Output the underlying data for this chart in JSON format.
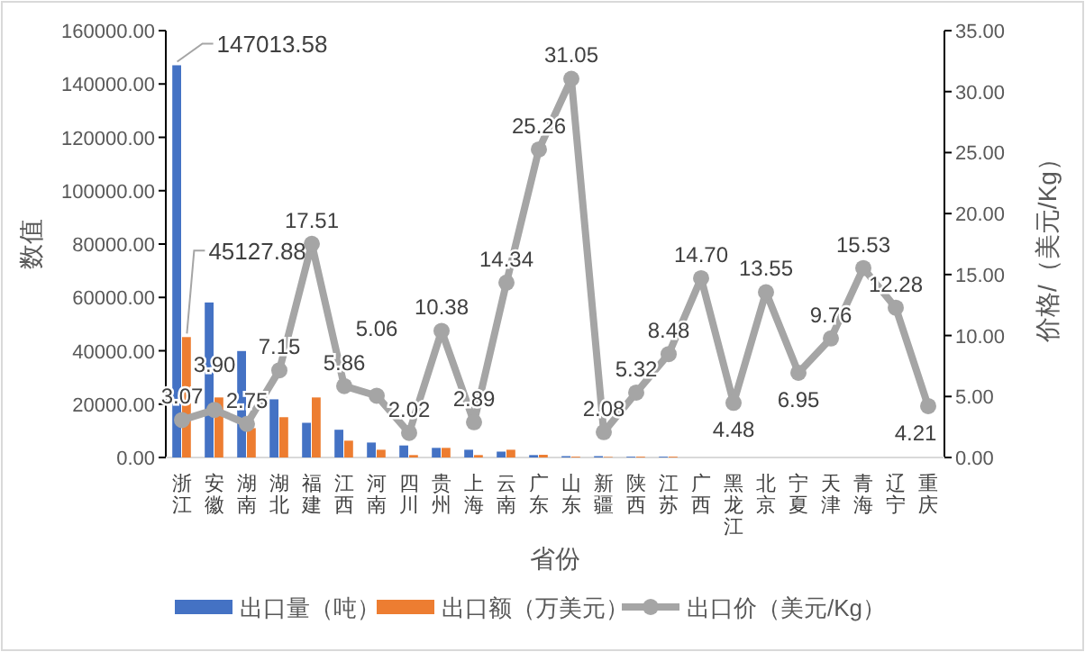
{
  "chart_data": {
    "type": "bar",
    "xlabel": "省份",
    "ylabel": "数值",
    "y2label": "价格/（美元/Kg）",
    "categories": [
      "浙江",
      "安徽",
      "湖南",
      "湖北",
      "福建",
      "江西",
      "河南",
      "四川",
      "贵州",
      "上海",
      "云南",
      "广东",
      "山东",
      "新疆",
      "陕西",
      "江苏",
      "广西",
      "黑龙江",
      "北京",
      "宁夏",
      "天津",
      "青海",
      "辽宁",
      "重庆"
    ],
    "series": [
      {
        "name": "出口量（吨）",
        "color": "#4472c4",
        "values": [
          147013.58,
          58100,
          39900,
          21800,
          13000,
          10400,
          5600,
          4500,
          3600,
          2900,
          2200,
          900,
          500,
          500,
          300,
          300,
          0,
          0,
          0,
          0,
          0,
          0,
          0,
          0
        ],
        "value_labels": [
          "147013.58",
          null,
          null,
          null,
          null,
          null,
          null,
          null,
          null,
          null,
          null,
          null,
          null,
          null,
          null,
          null,
          null,
          null,
          null,
          null,
          null,
          null,
          null,
          null
        ]
      },
      {
        "name": "出口额（万美元）",
        "color": "#ed7d31",
        "values": [
          45127.88,
          22500,
          11000,
          15100,
          22500,
          6300,
          2900,
          900,
          3600,
          900,
          2900,
          1000,
          300,
          200,
          300,
          300,
          0,
          0,
          0,
          0,
          0,
          0,
          0,
          0
        ],
        "value_labels": [
          "45127.88",
          null,
          null,
          null,
          null,
          null,
          null,
          null,
          null,
          null,
          null,
          null,
          null,
          null,
          null,
          null,
          null,
          null,
          null,
          null,
          null,
          null,
          null,
          null
        ]
      },
      {
        "name": "出口价（美元/Kg）",
        "type": "line",
        "axis": "y2",
        "color": "#a5a5a5",
        "marker": "circle",
        "values": [
          3.07,
          3.9,
          2.75,
          7.15,
          17.51,
          5.86,
          5.06,
          2.02,
          10.38,
          2.89,
          14.34,
          25.26,
          31.05,
          2.08,
          5.32,
          8.48,
          14.7,
          4.48,
          13.55,
          6.95,
          9.76,
          15.53,
          12.28,
          4.21
        ],
        "value_labels": [
          "3.07",
          "3.90",
          "2.75",
          "7.15",
          "17.51",
          "5.86",
          "5.06",
          "2.02",
          "10.38",
          "2.89",
          "14.34",
          "25.26",
          "31.05",
          "2.08",
          "5.32",
          "8.48",
          "14.70",
          "4.48",
          "13.55",
          "6.95",
          "9.76",
          "15.53",
          "12.28",
          "4.21"
        ]
      }
    ],
    "ylim": [
      0,
      160000
    ],
    "yticks": [
      {
        "value": 0,
        "label": "0.00"
      },
      {
        "value": 20000,
        "label": "20000.00"
      },
      {
        "value": 40000,
        "label": "40000.00"
      },
      {
        "value": 60000,
        "label": "60000.00"
      },
      {
        "value": 80000,
        "label": "80000.00"
      },
      {
        "value": 100000,
        "label": "100000.00"
      },
      {
        "value": 120000,
        "label": "120000.00"
      },
      {
        "value": 140000,
        "label": "140000.00"
      },
      {
        "value": 160000,
        "label": "160000.00"
      }
    ],
    "y2lim": [
      0,
      35
    ],
    "y2ticks": [
      {
        "value": 0,
        "label": "0.00"
      },
      {
        "value": 5,
        "label": "5.00"
      },
      {
        "value": 10,
        "label": "10.00"
      },
      {
        "value": 15,
        "label": "15.00"
      },
      {
        "value": 20,
        "label": "20.00"
      },
      {
        "value": 25,
        "label": "25.00"
      },
      {
        "value": 30,
        "label": "30.00"
      },
      {
        "value": 35,
        "label": "35.00"
      }
    ],
    "grid": false,
    "legend": "bottom"
  }
}
